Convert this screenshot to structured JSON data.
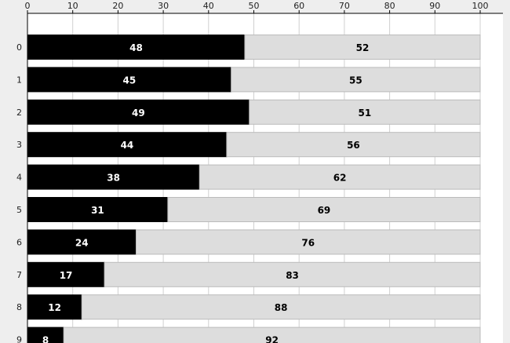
{
  "chart_data": {
    "type": "bar",
    "stacked": true,
    "orientation": "horizontal",
    "categories": [
      "0",
      "1",
      "2",
      "3",
      "4",
      "5",
      "6",
      "7",
      "8",
      "9"
    ],
    "series": [
      {
        "values": [
          48,
          45,
          49,
          44,
          38,
          31,
          24,
          17,
          12,
          8
        ],
        "color": "#000000",
        "label_color": "#ffffff"
      },
      {
        "values": [
          52,
          55,
          51,
          56,
          62,
          69,
          76,
          83,
          88,
          92
        ],
        "color": "#dddddd",
        "label_color": "#000000"
      }
    ],
    "x_ticks": [
      0,
      10,
      20,
      30,
      40,
      50,
      60,
      70,
      80,
      90,
      100
    ],
    "xlim": [
      0,
      100
    ],
    "x_axis_position": "top",
    "grid": true,
    "legend": "none",
    "title": "",
    "xlabel": "",
    "ylabel": ""
  },
  "colors": {
    "page_background": "#eeeeee",
    "plot_background": "#ffffff",
    "grid": "#d0d0d0",
    "bar_border": "#bbbbbb",
    "axis": "#000000"
  }
}
